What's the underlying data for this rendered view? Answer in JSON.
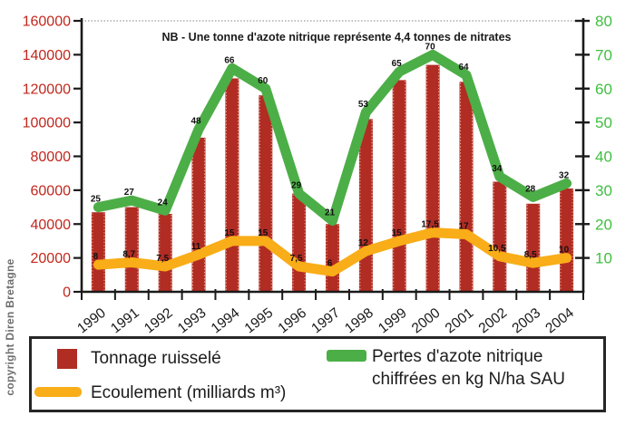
{
  "copyright": "copyright Diren Bretagne",
  "chart_data": {
    "type": "combo-bar-line",
    "title": "NB - Une tonne d'azote nitrique représente 4,4 tonnes de nitrates",
    "categories": [
      "1990",
      "1991",
      "1992",
      "1993",
      "1994",
      "1995",
      "1996",
      "1997",
      "1998",
      "1999",
      "2000",
      "2001",
      "2002",
      "2003",
      "2004"
    ],
    "left_axis": {
      "min": 0,
      "max": 160000,
      "step": 20000,
      "label_color": "#c2271c",
      "ticks": [
        "0",
        "20000",
        "40000",
        "60000",
        "80000",
        "100000",
        "120000",
        "140000",
        "160000"
      ]
    },
    "right_axis": {
      "min": 0,
      "max": 80,
      "step": 10,
      "label_color": "#3fbf3f",
      "ticks": [
        "10",
        "20",
        "30",
        "40",
        "50",
        "60",
        "70",
        "80"
      ]
    },
    "series": [
      {
        "name": "Tonnage ruisselé",
        "type": "bar",
        "axis": "left",
        "color": "#b12c23",
        "values": [
          47000,
          50000,
          46000,
          91000,
          126000,
          116000,
          58000,
          40000,
          102000,
          125000,
          134000,
          124000,
          65000,
          52000,
          61000
        ]
      },
      {
        "name": "Ecoulement (milliards m³)",
        "type": "line",
        "axis": "right",
        "color": "#f9ad18",
        "values": [
          8,
          8.7,
          7.5,
          11,
          15,
          15,
          7.5,
          6,
          12,
          15,
          17.5,
          17,
          10.5,
          8.5,
          10
        ],
        "labels": [
          "8",
          "8,7",
          "7,5",
          "11",
          "15",
          "15",
          "7,5",
          "6",
          "12",
          "15",
          "17,5",
          "17",
          "10,5",
          "8,5",
          "10"
        ]
      },
      {
        "name": "Pertes d'azote nitrique chiffrées en kg N/ha SAU",
        "type": "line",
        "axis": "right",
        "color": "#4cae47",
        "values": [
          25,
          27,
          24,
          48,
          66,
          60,
          29,
          21,
          53,
          65,
          70,
          64,
          34,
          28,
          32
        ],
        "labels": [
          "25",
          "27",
          "24",
          "48",
          "66",
          "60",
          "29",
          "21",
          "53",
          "65",
          "70",
          "64",
          "34",
          "28",
          "32"
        ]
      }
    ],
    "legend_position": "bottom",
    "grid": "off"
  },
  "legend": {
    "tonnage_label": "Tonnage ruisselé",
    "ecoulement_label": "Ecoulement (milliards m³)",
    "pertes_label_line1": "Pertes d'azote nitrique",
    "pertes_label_line2": "chiffrées en kg N/ha SAU"
  }
}
